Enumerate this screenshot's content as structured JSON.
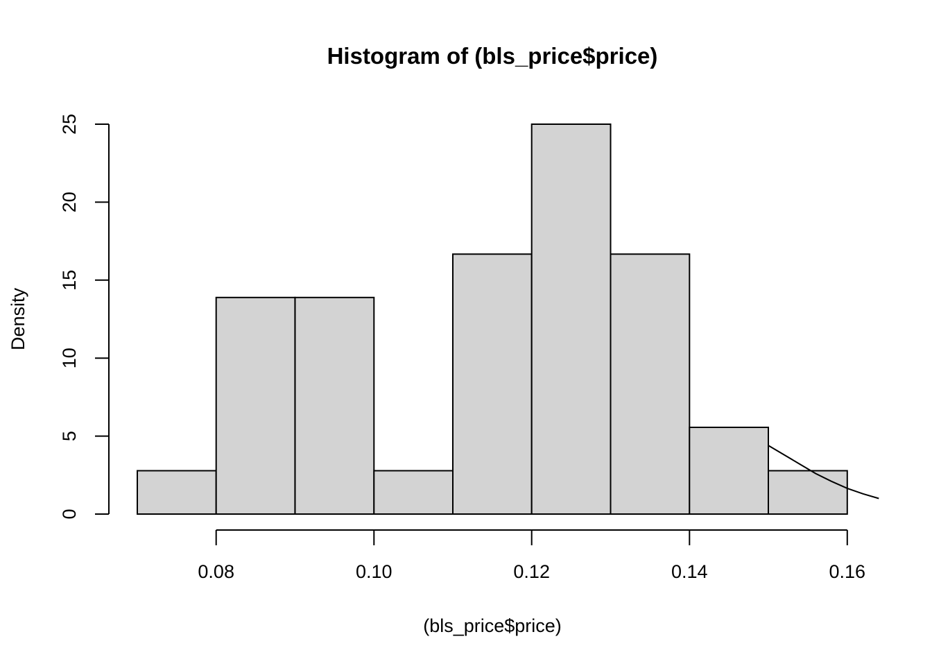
{
  "chart_data": {
    "type": "bar",
    "title": "Histogram of (bls_price$price)",
    "xlabel": "(bls_price$price)",
    "ylabel": "Density",
    "xlim": [
      0.07,
      0.16
    ],
    "ylim": [
      0,
      25
    ],
    "x_ticks": [
      0.08,
      0.1,
      0.12,
      0.14,
      0.16
    ],
    "x_tick_labels": [
      "0.08",
      "0.10",
      "0.12",
      "0.14",
      "0.16"
    ],
    "y_ticks": [
      0,
      5,
      10,
      15,
      20,
      25
    ],
    "y_tick_labels": [
      "0",
      "5",
      "10",
      "15",
      "20",
      "25"
    ],
    "bins": [
      {
        "x0": 0.07,
        "x1": 0.08,
        "density": 2.78
      },
      {
        "x0": 0.08,
        "x1": 0.09,
        "density": 13.89
      },
      {
        "x0": 0.09,
        "x1": 0.1,
        "density": 13.89
      },
      {
        "x0": 0.1,
        "x1": 0.11,
        "density": 2.78
      },
      {
        "x0": 0.11,
        "x1": 0.12,
        "density": 16.67
      },
      {
        "x0": 0.12,
        "x1": 0.13,
        "density": 25.0
      },
      {
        "x0": 0.13,
        "x1": 0.14,
        "density": 16.67
      },
      {
        "x0": 0.14,
        "x1": 0.15,
        "density": 5.56
      },
      {
        "x0": 0.15,
        "x1": 0.16,
        "density": 2.78
      }
    ],
    "density_curve": [
      {
        "x": 0.15,
        "y": 4.4
      },
      {
        "x": 0.152,
        "y": 3.8
      },
      {
        "x": 0.154,
        "y": 3.2
      },
      {
        "x": 0.156,
        "y": 2.6
      },
      {
        "x": 0.158,
        "y": 2.1
      },
      {
        "x": 0.16,
        "y": 1.65
      },
      {
        "x": 0.162,
        "y": 1.3
      },
      {
        "x": 0.164,
        "y": 1.0
      }
    ],
    "bar_fill": "#d3d3d3",
    "grid": false,
    "legend": "none"
  }
}
